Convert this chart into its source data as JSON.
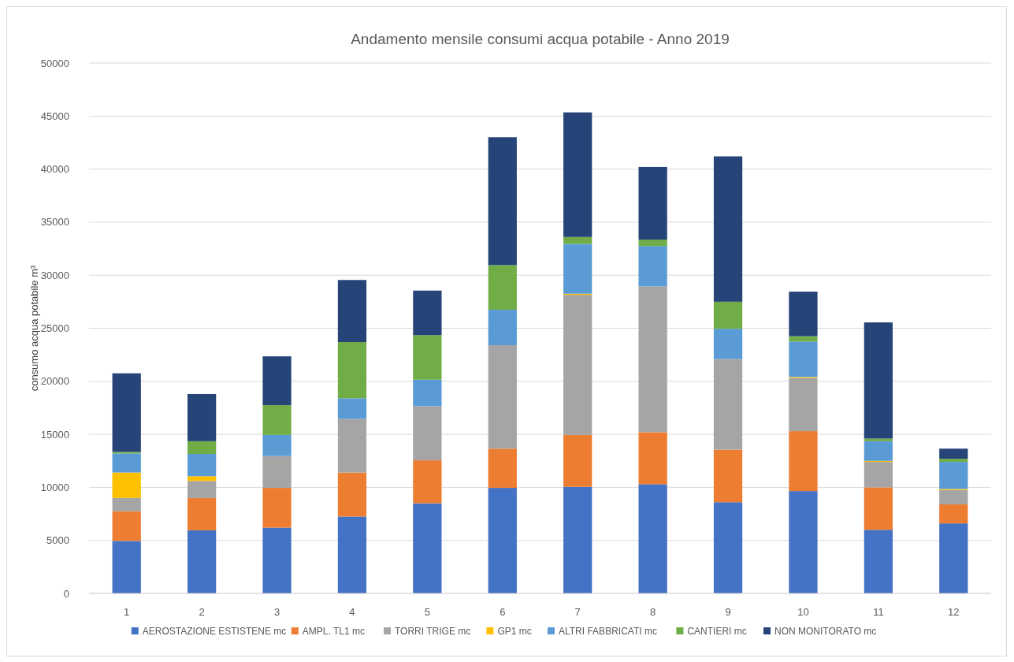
{
  "chart_data": {
    "type": "bar",
    "stacked": true,
    "title": "Andamento mensile consumi acqua potabile - Anno 2019",
    "ylabel": "consumo acqua potabile m³",
    "categories": [
      "1",
      "2",
      "3",
      "4",
      "5",
      "6",
      "7",
      "8",
      "9",
      "10",
      "11",
      "12"
    ],
    "series": [
      {
        "name": "AEROSTAZIONE ESTISTENE mc",
        "color": "#4472c4",
        "values": [
          4950,
          5950,
          6200,
          7250,
          8500,
          9950,
          10050,
          10300,
          8600,
          9650,
          6000,
          6600
        ]
      },
      {
        "name": "AMPL. TL1 mc",
        "color": "#ed7d31",
        "values": [
          2800,
          3050,
          3750,
          4150,
          4050,
          3700,
          4900,
          4900,
          4950,
          5650,
          4000,
          1800
        ]
      },
      {
        "name": "TORRI TRIGE mc",
        "color": "#a5a5a5",
        "values": [
          1250,
          1600,
          3000,
          5050,
          5100,
          9750,
          13200,
          13750,
          8550,
          5000,
          2400,
          1350
        ]
      },
      {
        "name": "GP1 mc",
        "color": "#ffc000",
        "values": [
          2400,
          450,
          0,
          0,
          0,
          0,
          100,
          0,
          0,
          100,
          100,
          100
        ]
      },
      {
        "name": "ALTRI FABBRICATI mc",
        "color": "#5b9bd5",
        "values": [
          1800,
          2100,
          2000,
          1950,
          2500,
          3350,
          4700,
          3800,
          2850,
          3350,
          1850,
          2550
        ]
      },
      {
        "name": "CANTIERI mc",
        "color": "#70ad47",
        "values": [
          150,
          1200,
          2800,
          5300,
          4200,
          4200,
          650,
          600,
          2550,
          500,
          250,
          300
        ]
      },
      {
        "name": "NON MONITORATO mc",
        "color": "#264478",
        "values": [
          7400,
          4450,
          4600,
          5850,
          4200,
          12050,
          11750,
          6850,
          13700,
          4200,
          10950,
          950
        ]
      }
    ],
    "ylim": [
      0,
      50000
    ],
    "yticks": [
      0,
      5000,
      10000,
      15000,
      20000,
      25000,
      30000,
      35000,
      40000,
      45000,
      50000
    ],
    "grid": "y",
    "legend": "bottom"
  }
}
